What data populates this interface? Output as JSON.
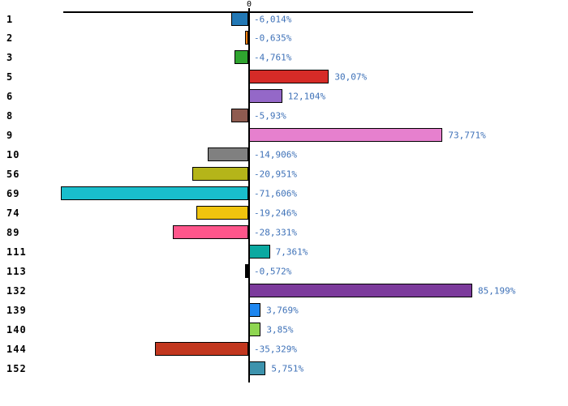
{
  "chart_data": {
    "type": "bar",
    "orientation": "horizontal",
    "title": "",
    "xlabel": "",
    "ylabel": "",
    "grid": false,
    "legend": false,
    "axis": {
      "zero_tick_label": "0"
    },
    "categories": [
      "1",
      "2",
      "3",
      "5",
      "6",
      "8",
      "9",
      "10",
      "56",
      "69",
      "74",
      "89",
      "111",
      "113",
      "132",
      "139",
      "140",
      "144",
      "152"
    ],
    "values": [
      -6.014,
      -0.635,
      -4.761,
      30.07,
      12.104,
      -5.93,
      73.771,
      -14.906,
      -20.951,
      -71.606,
      -19.246,
      -28.331,
      7.361,
      -0.572,
      85.199,
      3.769,
      3.85,
      -35.329,
      5.751
    ],
    "value_labels": [
      "-6,014%",
      "-0,635%",
      "-4,761%",
      "30,07%",
      "12,104%",
      "-5,93%",
      "73,771%",
      "-14,906%",
      "-20,951%",
      "-71,606%",
      "-19,246%",
      "-28,331%",
      "7,361%",
      "-0,572%",
      "85,199%",
      "3,769%",
      "3,85%",
      "-35,329%",
      "5,751%"
    ],
    "bar_colors": [
      "#2278B5",
      "#FF7F0E",
      "#2FA42F",
      "#D62B27",
      "#9468C8",
      "#8F5B50",
      "#E680CE",
      "#808080",
      "#B5B519",
      "#19BECC",
      "#F0C40E",
      "#FF568B",
      "#0BA9A1",
      "#000000",
      "#7C3B9C",
      "#1E87F0",
      "#8FD651",
      "#C2371F",
      "#3D93AD"
    ],
    "xlim": [
      -72,
      92
    ],
    "colors": {
      "value_label_text": "#3F72B8",
      "category_label_text": "#000000",
      "axis_line": "#000000",
      "bar_border": "#000000",
      "background": "#FFFFFF"
    }
  }
}
